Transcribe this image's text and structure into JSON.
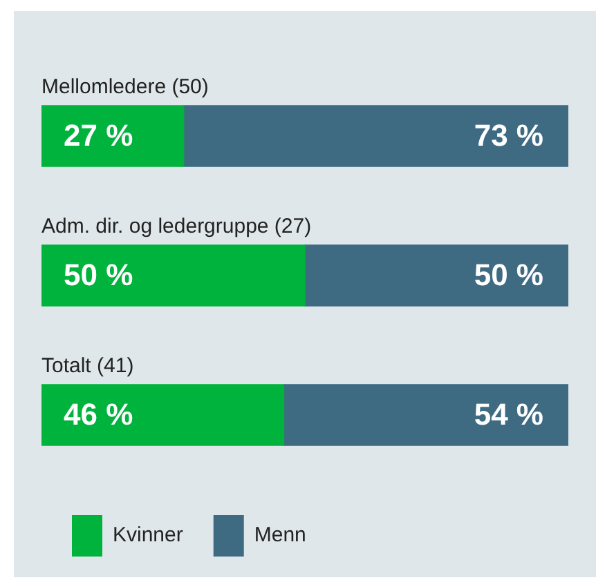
{
  "chart_data": {
    "type": "bar",
    "orientation": "horizontal",
    "stacked": true,
    "categories": [
      "Mellomledere (50)",
      "Adm. dir. og ledergruppe (27)",
      "Totalt (41)"
    ],
    "series": [
      {
        "name": "Kvinner",
        "color": "#00b33c",
        "values": [
          27,
          50,
          46
        ],
        "value_labels": [
          "27 %",
          "50 %",
          "46 %"
        ]
      },
      {
        "name": "Menn",
        "color": "#3e6a82",
        "values": [
          73,
          50,
          54
        ],
        "value_labels": [
          "73 %",
          "50 %",
          "54 %"
        ]
      }
    ],
    "legend": "bottom left"
  }
}
